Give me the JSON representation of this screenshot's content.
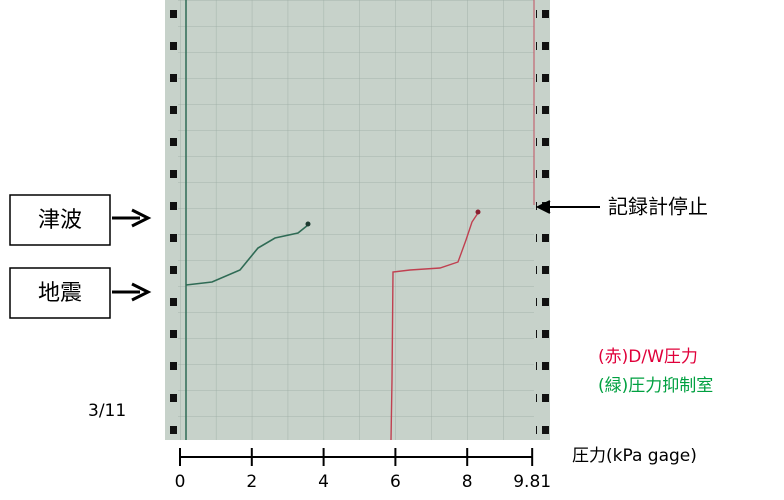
{
  "labels": {
    "tsunami": "津波",
    "earthquake": "地震",
    "recorder_stop": "記録計停止",
    "red_legend": "(赤)D/W圧力",
    "green_legend": "(緑)圧力抑制室",
    "date": "3/11"
  },
  "axis": {
    "ticks": [
      0,
      2,
      4,
      6,
      8,
      9.81
    ],
    "label": "圧力(kPa gage)"
  }
}
